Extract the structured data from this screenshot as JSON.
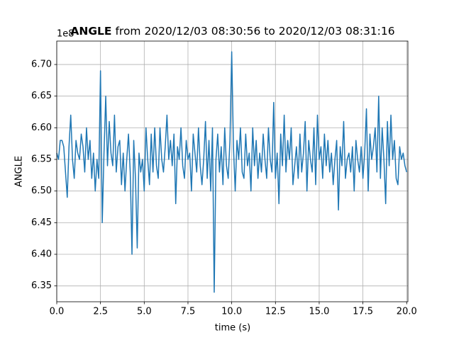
{
  "chart_data": {
    "type": "line",
    "title_bold": "ANGLE",
    "title": "from 2020/12/03 08:30:56 to 2020/12/03 08:31:16",
    "offset_text": "1e8",
    "xlabel": "time (s)",
    "ylabel": "ANGLE",
    "color": "#1f77b4",
    "grid": true,
    "xlim": [
      0,
      20.07
    ],
    "ylim": [
      6.325,
      6.737
    ],
    "xticks": [
      {
        "value": 0,
        "label": "0.0"
      },
      2.5,
      {
        "value": 5,
        "label": "5.0"
      },
      7.5,
      {
        "value": 10,
        "label": "10.0"
      },
      12.5,
      {
        "value": 15,
        "label": "15.0"
      },
      17.5,
      {
        "value": 20,
        "label": "20.0"
      }
    ],
    "yticks": [
      6.35,
      {
        "value": 6.4,
        "label": "6.40"
      },
      6.45,
      {
        "value": 6.5,
        "label": "6.50"
      },
      6.55,
      {
        "value": 6.6,
        "label": "6.60"
      },
      6.65,
      {
        "value": 6.7,
        "label": "6.70"
      }
    ],
    "x": [
      0,
      0.1,
      0.2,
      0.3,
      0.4,
      0.5,
      0.6,
      0.7,
      0.8,
      0.9,
      1,
      1.1,
      1.2,
      1.3,
      1.4,
      1.5,
      1.6,
      1.7,
      1.8,
      1.9,
      2,
      2.1,
      2.2,
      2.3,
      2.4,
      2.5,
      2.6,
      2.7,
      2.8,
      2.9,
      3,
      3.1,
      3.2,
      3.3,
      3.4,
      3.5,
      3.6,
      3.7,
      3.8,
      3.9,
      4,
      4.1,
      4.2,
      4.3,
      4.4,
      4.5,
      4.6,
      4.7,
      4.8,
      4.9,
      5,
      5.1,
      5.2,
      5.3,
      5.4,
      5.5,
      5.6,
      5.7,
      5.8,
      5.9,
      6,
      6.1,
      6.2,
      6.3,
      6.4,
      6.5,
      6.6,
      6.7,
      6.8,
      6.9,
      7,
      7.1,
      7.2,
      7.3,
      7.4,
      7.5,
      7.6,
      7.7,
      7.8,
      7.9,
      8,
      8.1,
      8.2,
      8.3,
      8.4,
      8.5,
      8.6,
      8.7,
      8.8,
      8.9,
      9,
      9.1,
      9.2,
      9.3,
      9.4,
      9.5,
      9.6,
      9.7,
      9.8,
      9.9,
      10,
      10.1,
      10.2,
      10.3,
      10.4,
      10.5,
      10.6,
      10.7,
      10.8,
      10.9,
      11,
      11.1,
      11.2,
      11.3,
      11.4,
      11.5,
      11.6,
      11.7,
      11.8,
      11.9,
      12,
      12.1,
      12.2,
      12.3,
      12.4,
      12.5,
      12.6,
      12.7,
      12.8,
      12.9,
      13,
      13.1,
      13.2,
      13.3,
      13.4,
      13.5,
      13.6,
      13.7,
      13.8,
      13.9,
      14,
      14.1,
      14.2,
      14.3,
      14.4,
      14.5,
      14.6,
      14.7,
      14.8,
      14.9,
      15,
      15.1,
      15.2,
      15.3,
      15.4,
      15.5,
      15.6,
      15.7,
      15.8,
      15.9,
      16,
      16.1,
      16.2,
      16.3,
      16.4,
      16.5,
      16.6,
      16.7,
      16.8,
      16.9,
      17,
      17.1,
      17.2,
      17.3,
      17.4,
      17.5,
      17.6,
      17.7,
      17.8,
      17.9,
      18,
      18.1,
      18.2,
      18.3,
      18.4,
      18.5,
      18.6,
      18.7,
      18.8,
      18.9,
      19,
      19.1,
      19.2,
      19.3,
      19.4,
      19.5,
      19.6,
      19.7,
      19.8,
      19.9,
      20
    ],
    "values": [
      6.56,
      6.55,
      6.58,
      6.58,
      6.57,
      6.53,
      6.49,
      6.57,
      6.62,
      6.55,
      6.52,
      6.58,
      6.56,
      6.55,
      6.59,
      6.57,
      6.53,
      6.6,
      6.55,
      6.58,
      6.52,
      6.56,
      6.5,
      6.55,
      6.52,
      6.69,
      6.45,
      6.56,
      6.65,
      6.54,
      6.61,
      6.56,
      6.54,
      6.62,
      6.53,
      6.57,
      6.58,
      6.51,
      6.56,
      6.5,
      6.55,
      6.59,
      6.53,
      6.4,
      6.58,
      6.52,
      6.41,
      6.56,
      6.53,
      6.55,
      6.5,
      6.6,
      6.55,
      6.51,
      6.59,
      6.53,
      6.6,
      6.54,
      6.52,
      6.6,
      6.55,
      6.53,
      6.57,
      6.62,
      6.55,
      6.58,
      6.54,
      6.59,
      6.48,
      6.57,
      6.55,
      6.6,
      6.54,
      6.52,
      6.58,
      6.55,
      6.56,
      6.5,
      6.59,
      6.56,
      6.53,
      6.6,
      6.54,
      6.51,
      6.55,
      6.61,
      6.52,
      6.58,
      6.5,
      6.6,
      6.34,
      6.55,
      6.59,
      6.53,
      6.57,
      6.51,
      6.6,
      6.54,
      6.52,
      6.58,
      6.72,
      6.57,
      6.5,
      6.58,
      6.55,
      6.6,
      6.53,
      6.52,
      6.59,
      6.54,
      6.56,
      6.5,
      6.6,
      6.54,
      6.58,
      6.52,
      6.56,
      6.53,
      6.59,
      6.55,
      6.52,
      6.6,
      6.55,
      6.53,
      6.64,
      6.52,
      6.56,
      6.48,
      6.59,
      6.54,
      6.62,
      6.53,
      6.58,
      6.55,
      6.6,
      6.51,
      6.54,
      6.57,
      6.52,
      6.59,
      6.53,
      6.56,
      6.61,
      6.5,
      6.58,
      6.55,
      6.53,
      6.6,
      6.51,
      6.62,
      6.55,
      6.57,
      6.52,
      6.59,
      6.54,
      6.58,
      6.53,
      6.56,
      6.51,
      6.55,
      6.58,
      6.47,
      6.57,
      6.54,
      6.61,
      6.52,
      6.55,
      6.56,
      6.53,
      6.57,
      6.5,
      6.58,
      6.55,
      6.53,
      6.57,
      6.52,
      6.56,
      6.63,
      6.5,
      6.59,
      6.55,
      6.57,
      6.6,
      6.53,
      6.65,
      6.52,
      6.6,
      6.55,
      6.48,
      6.61,
      6.54,
      6.62,
      6.55,
      6.58,
      6.52,
      6.51,
      6.57,
      6.55,
      6.56,
      6.54,
      6.53
    ]
  }
}
